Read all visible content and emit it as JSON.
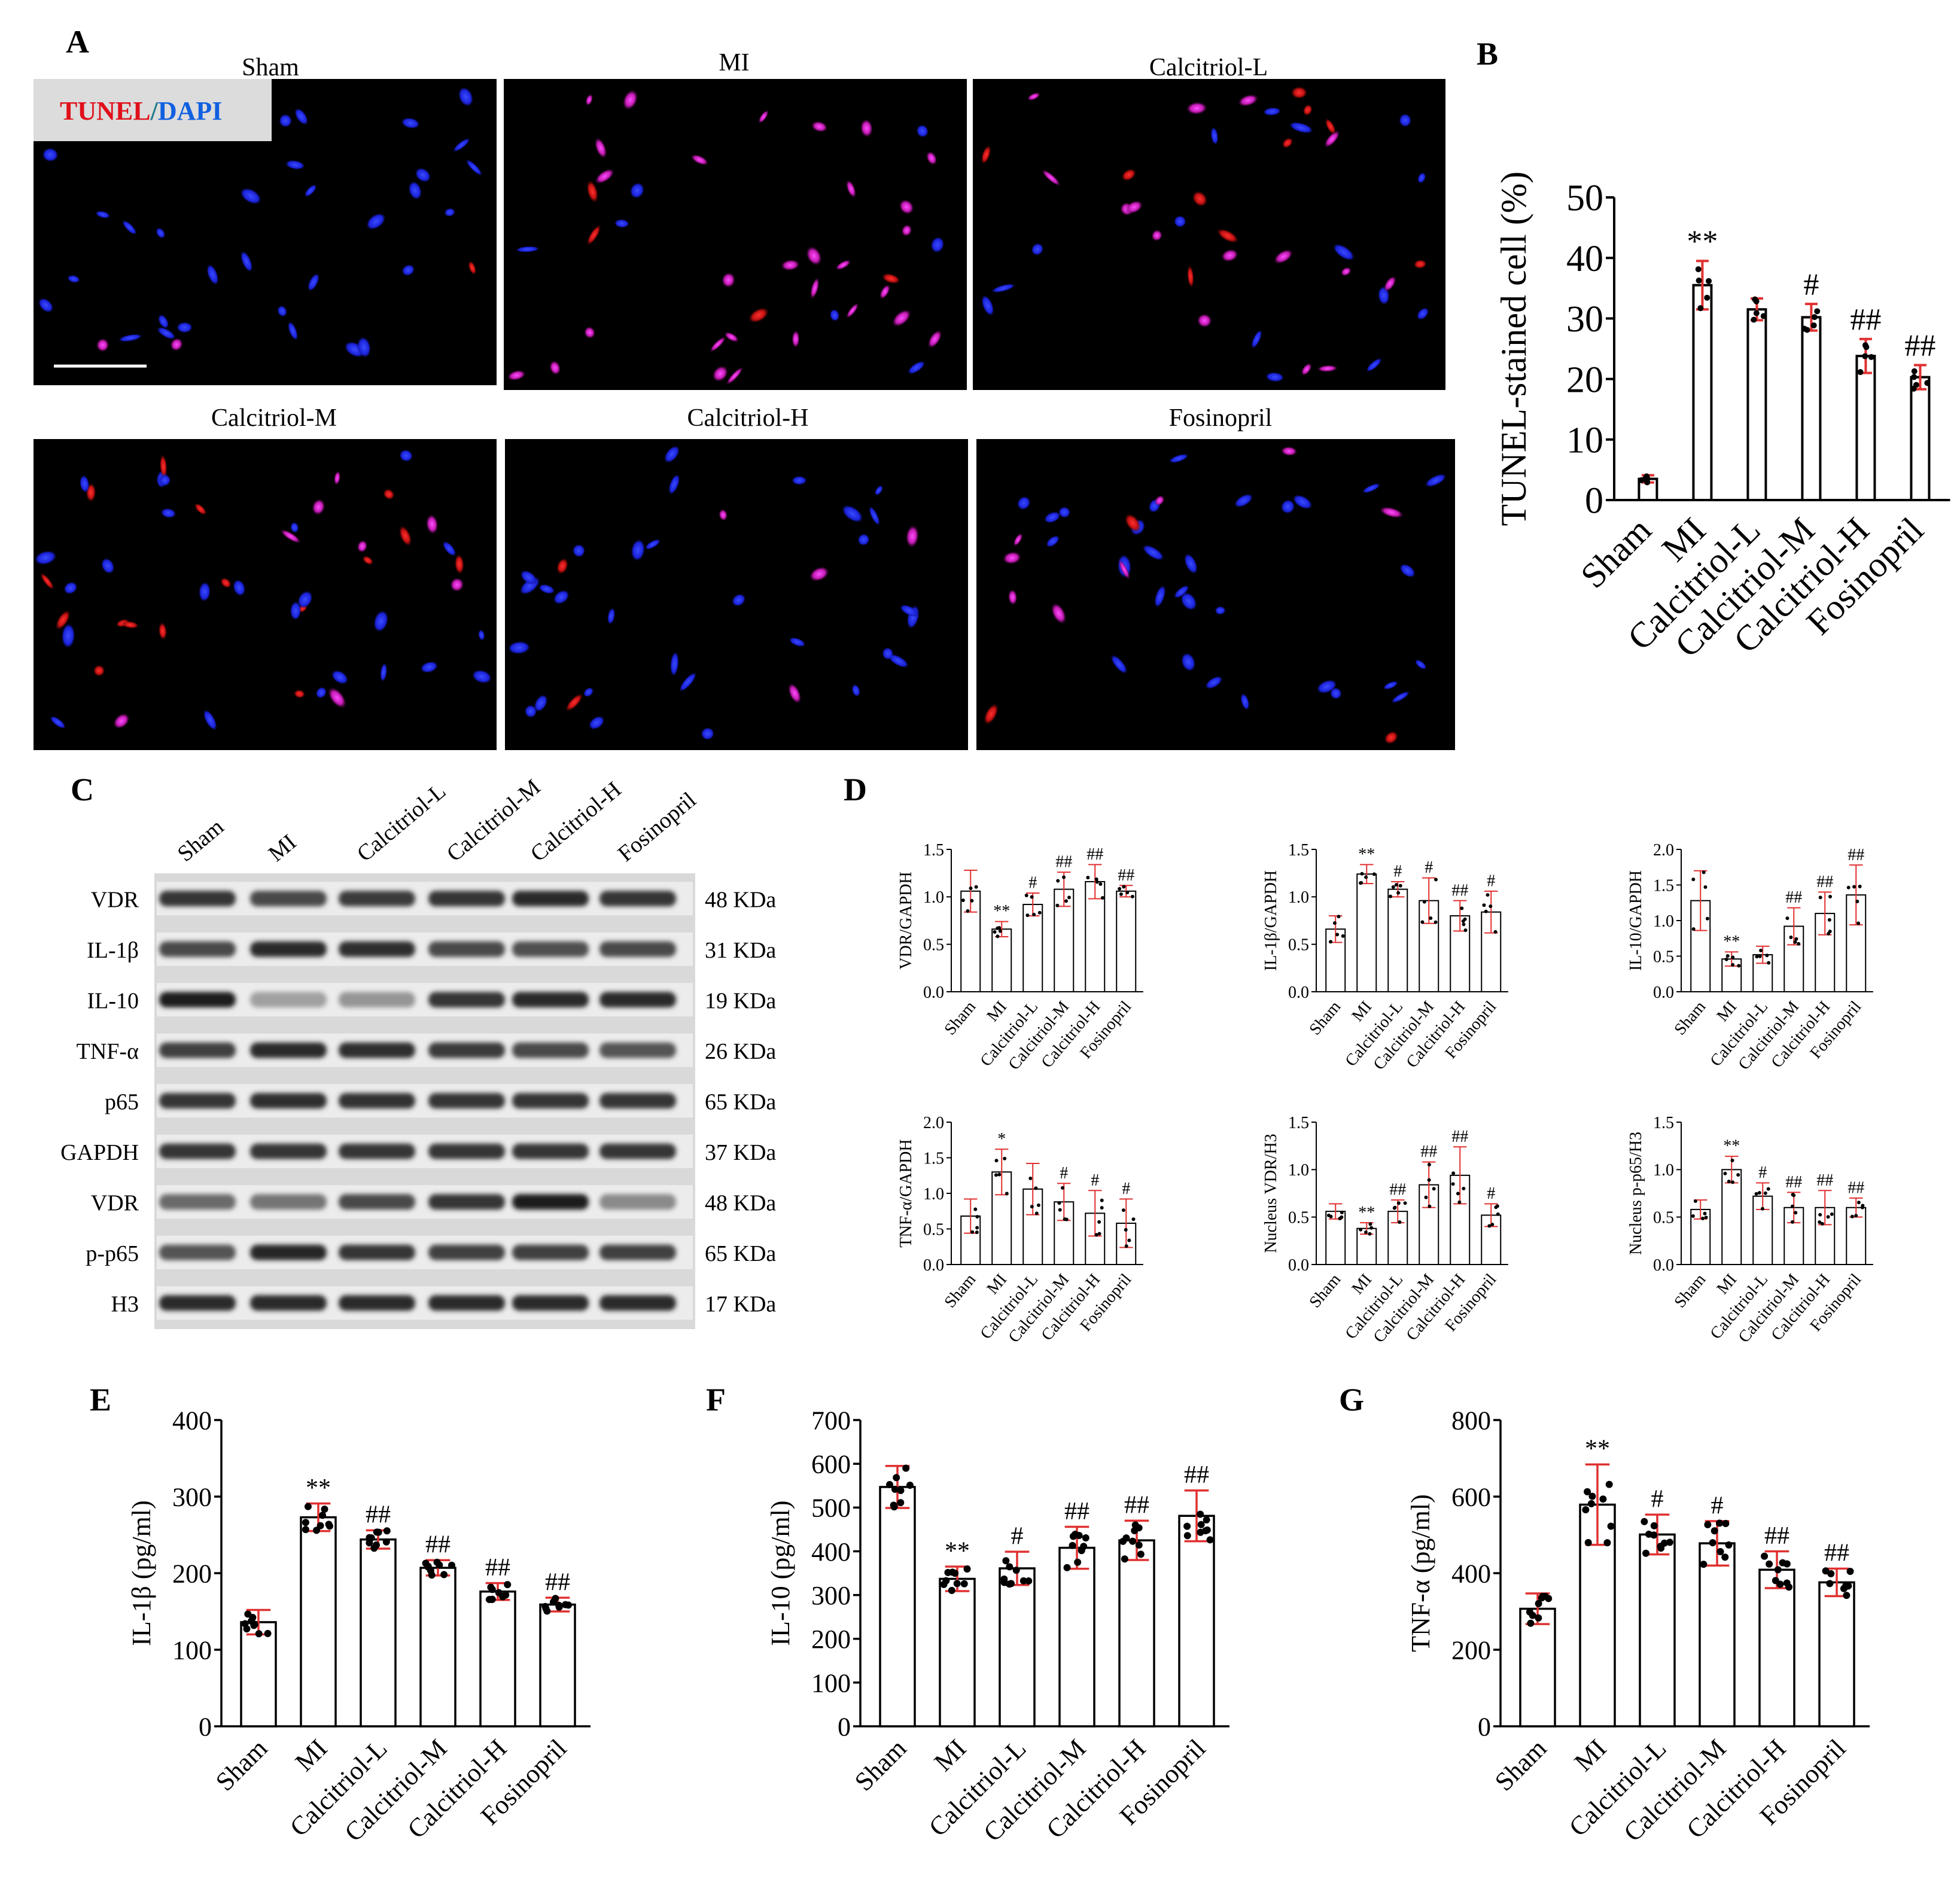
{
  "figure": {
    "panels": {
      "A": "A",
      "B": "B",
      "C": "C",
      "D": "D",
      "E": "E",
      "F": "F",
      "G": "G"
    },
    "micrographs": {
      "legend_tunel": "TUNEL",
      "legend_sep": "/",
      "legend_dapi": "DAPI",
      "titles": [
        "Sham",
        "MI",
        "Calcitriol-L",
        "Calcitriol-M",
        "Calcitriol-H",
        "Fosinopril"
      ]
    },
    "western_blot": {
      "lanes": [
        "Sham",
        "MI",
        "Calcitriol-L",
        "Calcitriol-M",
        "Calcitriol-H",
        "Fosinopril"
      ],
      "rows": [
        {
          "protein": "VDR",
          "weight": "48 KDa",
          "intensity": [
            0.85,
            0.75,
            0.82,
            0.85,
            0.9,
            0.85
          ]
        },
        {
          "protein": "IL-1β",
          "weight": "31 KDa",
          "intensity": [
            0.75,
            0.9,
            0.88,
            0.75,
            0.72,
            0.75
          ]
        },
        {
          "protein": "IL-10",
          "weight": "19 KDa",
          "intensity": [
            0.95,
            0.35,
            0.4,
            0.85,
            0.9,
            0.9
          ]
        },
        {
          "protein": "TNF-α",
          "weight": "26 KDa",
          "intensity": [
            0.8,
            0.9,
            0.88,
            0.82,
            0.75,
            0.7
          ]
        },
        {
          "protein": "p65",
          "weight": "65 KDa",
          "intensity": [
            0.85,
            0.88,
            0.86,
            0.85,
            0.85,
            0.85
          ]
        },
        {
          "protein": "GAPDH",
          "weight": "37 KDa",
          "intensity": [
            0.85,
            0.85,
            0.85,
            0.85,
            0.85,
            0.85
          ]
        },
        {
          "protein": "VDR",
          "weight": "48 KDa",
          "intensity": [
            0.6,
            0.55,
            0.75,
            0.85,
            0.95,
            0.45
          ]
        },
        {
          "protein": "p-p65",
          "weight": "65 KDa",
          "intensity": [
            0.7,
            0.92,
            0.85,
            0.8,
            0.8,
            0.8
          ]
        },
        {
          "protein": "H3",
          "weight": "17 KDa",
          "intensity": [
            0.9,
            0.9,
            0.9,
            0.9,
            0.9,
            0.9
          ]
        }
      ]
    }
  },
  "chart_data": [
    {
      "panel": "B",
      "type": "bar",
      "ylabel": "TUNEL-stained cell (%)",
      "ylim": [
        0,
        50
      ],
      "yticks": [
        0,
        10,
        20,
        30,
        40,
        50
      ],
      "categories": [
        "Sham",
        "MI",
        "Calcitriol-L",
        "Calcitriol-M",
        "Calcitriol-H",
        "Fosinopril"
      ],
      "values": [
        3.5,
        35.5,
        31.5,
        30.2,
        23.8,
        20.3
      ],
      "errors": [
        0.6,
        4.0,
        1.8,
        2.2,
        2.8,
        2.0
      ],
      "annotations": [
        "",
        "**",
        "",
        "#",
        "##",
        "##"
      ]
    },
    {
      "panel": "D",
      "type": "bar",
      "ylabel": "VDR/GAPDH",
      "ylim": [
        0,
        1.5
      ],
      "yticks": [
        0.0,
        0.5,
        1.0,
        1.5
      ],
      "categories": [
        "Sham",
        "MI",
        "Calcitriol-L",
        "Calcitriol-M",
        "Calcitriol-H",
        "Fosinopril"
      ],
      "values": [
        1.06,
        0.66,
        0.92,
        1.08,
        1.16,
        1.06
      ],
      "errors": [
        0.22,
        0.08,
        0.12,
        0.18,
        0.18,
        0.06
      ],
      "annotations": [
        "",
        "**",
        "#",
        "##",
        "##",
        "##"
      ]
    },
    {
      "panel": "D",
      "type": "bar",
      "ylabel": "IL-1β/GAPDH",
      "ylim": [
        0,
        1.5
      ],
      "yticks": [
        0.0,
        0.5,
        1.0,
        1.5
      ],
      "categories": [
        "Sham",
        "MI",
        "Calcitriol-L",
        "Calcitriol-M",
        "Calcitriol-H",
        "Fosinopril"
      ],
      "values": [
        0.66,
        1.24,
        1.08,
        0.96,
        0.8,
        0.84
      ],
      "errors": [
        0.14,
        0.1,
        0.08,
        0.24,
        0.16,
        0.22
      ],
      "annotations": [
        "",
        "**",
        "#",
        "#",
        "##",
        "#"
      ]
    },
    {
      "panel": "D",
      "type": "bar",
      "ylabel": "IL-10/GAPDH",
      "ylim": [
        0,
        2.0
      ],
      "yticks": [
        0.0,
        0.5,
        1.0,
        1.5,
        2.0
      ],
      "categories": [
        "Sham",
        "MI",
        "Calcitriol-L",
        "Calcitriol-M",
        "Calcitriol-H",
        "Fosinopril"
      ],
      "values": [
        1.28,
        0.46,
        0.52,
        0.92,
        1.1,
        1.36
      ],
      "errors": [
        0.42,
        0.1,
        0.12,
        0.26,
        0.3,
        0.42
      ],
      "annotations": [
        "",
        "**",
        "",
        "##",
        "##",
        "##"
      ]
    },
    {
      "panel": "D",
      "type": "bar",
      "ylabel": "TNF-α/GAPDH",
      "ylim": [
        0,
        2.0
      ],
      "yticks": [
        0.0,
        0.5,
        1.0,
        1.5,
        2.0
      ],
      "categories": [
        "Sham",
        "MI",
        "Calcitriol-L",
        "Calcitriol-M",
        "Calcitriol-H",
        "Fosinopril"
      ],
      "values": [
        0.68,
        1.3,
        1.06,
        0.88,
        0.72,
        0.58
      ],
      "errors": [
        0.24,
        0.32,
        0.36,
        0.26,
        0.32,
        0.34
      ],
      "annotations": [
        "",
        "*",
        "",
        "#",
        "#",
        "#"
      ]
    },
    {
      "panel": "D",
      "type": "bar",
      "ylabel": "Nucleus VDR/H3",
      "ylim": [
        0,
        1.5
      ],
      "yticks": [
        0.0,
        0.5,
        1.0,
        1.5
      ],
      "categories": [
        "Sham",
        "MI",
        "Calcitriol-L",
        "Calcitriol-M",
        "Calcitriol-H",
        "Fosinopril"
      ],
      "values": [
        0.56,
        0.38,
        0.56,
        0.84,
        0.94,
        0.52
      ],
      "errors": [
        0.08,
        0.06,
        0.12,
        0.24,
        0.3,
        0.12
      ],
      "annotations": [
        "",
        "**",
        "##",
        "##",
        "##",
        "#"
      ]
    },
    {
      "panel": "D",
      "type": "bar",
      "ylabel": "Nucleus p-p65/H3",
      "ylim": [
        0,
        1.5
      ],
      "yticks": [
        0.0,
        0.5,
        1.0,
        1.5
      ],
      "categories": [
        "Sham",
        "MI",
        "Calcitriol-L",
        "Calcitriol-M",
        "Calcitriol-H",
        "Fosinopril"
      ],
      "values": [
        0.58,
        1.0,
        0.72,
        0.6,
        0.6,
        0.6
      ],
      "errors": [
        0.1,
        0.14,
        0.14,
        0.16,
        0.18,
        0.1
      ],
      "annotations": [
        "",
        "**",
        "#",
        "##",
        "##",
        "##"
      ]
    },
    {
      "panel": "E",
      "type": "bar",
      "ylabel": "IL-1β (pg/ml)",
      "ylim": [
        0,
        400
      ],
      "yticks": [
        0,
        100,
        200,
        300,
        400
      ],
      "categories": [
        "Sham",
        "MI",
        "Calcitriol-L",
        "Calcitriol-M",
        "Calcitriol-H",
        "Fosinopril"
      ],
      "values": [
        136,
        273,
        244,
        207,
        176,
        159
      ],
      "errors": [
        16,
        18,
        12,
        10,
        11,
        9
      ],
      "annotations": [
        "",
        "**",
        "##",
        "##",
        "##",
        "##"
      ]
    },
    {
      "panel": "F",
      "type": "bar",
      "ylabel": "IL-10 (pg/ml)",
      "ylim": [
        0,
        700
      ],
      "yticks": [
        0,
        100,
        200,
        300,
        400,
        500,
        600,
        700
      ],
      "categories": [
        "Sham",
        "MI",
        "Calcitriol-L",
        "Calcitriol-M",
        "Calcitriol-H",
        "Fosinopril"
      ],
      "values": [
        547,
        337,
        361,
        408,
        425,
        481
      ],
      "errors": [
        48,
        28,
        38,
        48,
        45,
        58
      ],
      "annotations": [
        "",
        "**",
        "#",
        "##",
        "##",
        "##"
      ]
    },
    {
      "panel": "G",
      "type": "bar",
      "ylabel": "TNF-α (pg/ml)",
      "ylim": [
        0,
        800
      ],
      "yticks": [
        0,
        200,
        400,
        600,
        800
      ],
      "categories": [
        "Sham",
        "MI",
        "Calcitriol-L",
        "Calcitriol-M",
        "Calcitriol-H",
        "Fosinopril"
      ],
      "values": [
        307,
        579,
        501,
        478,
        409,
        376
      ],
      "errors": [
        40,
        105,
        52,
        58,
        48,
        36
      ],
      "annotations": [
        "",
        "**",
        "#",
        "#",
        "##",
        "##"
      ]
    }
  ]
}
